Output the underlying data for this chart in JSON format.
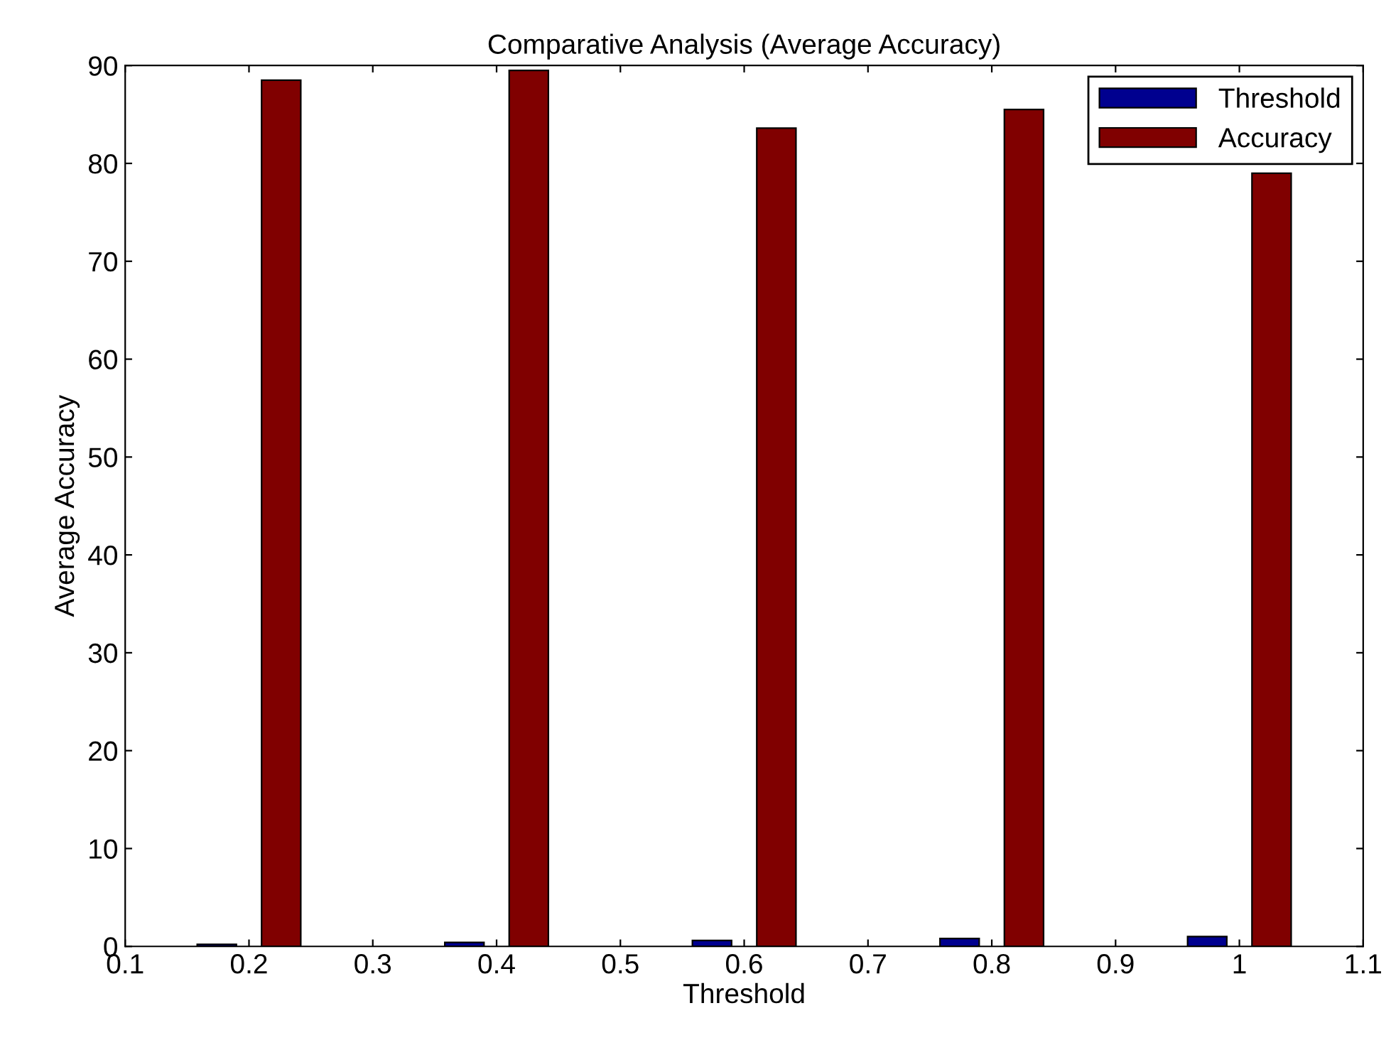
{
  "chart_data": {
    "type": "bar",
    "title": "Comparative Analysis (Average Accuracy)",
    "xlabel": "Threshold",
    "ylabel": "Average Accuracy",
    "x": [
      0.2,
      0.4,
      0.6,
      0.8,
      1.0
    ],
    "series": [
      {
        "name": "Threshold",
        "color": "#00008f",
        "values": [
          0.2,
          0.4,
          0.6,
          0.8,
          1.0
        ]
      },
      {
        "name": "Accuracy",
        "color": "#800000",
        "values": [
          88.5,
          89.5,
          83.6,
          85.5,
          79
        ]
      }
    ],
    "xlim": [
      0.1,
      1.1
    ],
    "xticks": [
      0.1,
      0.2,
      0.3,
      0.4,
      0.5,
      0.6,
      0.7,
      0.8,
      0.9,
      {
        "value": 1.0,
        "label": "1"
      },
      1.1
    ],
    "ylim": [
      0,
      90
    ],
    "yticks": [
      0,
      10,
      20,
      30,
      40,
      50,
      60,
      70,
      80,
      90
    ],
    "grid": false,
    "legend": "top right"
  }
}
